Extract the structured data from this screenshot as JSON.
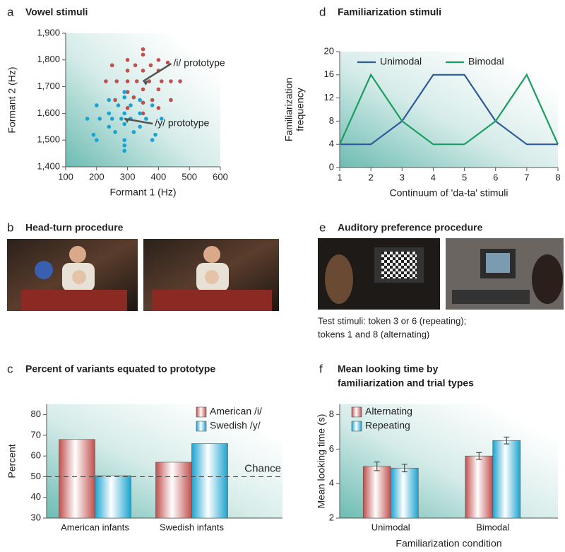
{
  "chart_data": [
    {
      "panel": "a",
      "type": "scatter",
      "title": "Vowel stimuli",
      "xlabel": "Formant 1 (Hz)",
      "ylabel": "Formant 2 (Hz)",
      "xlim": [
        100,
        600
      ],
      "xticks": [
        100,
        200,
        300,
        400,
        500,
        600
      ],
      "ylim": [
        1400,
        1900
      ],
      "yticks": [
        {
          "value": 1400,
          "label": "1,400"
        },
        {
          "value": 1500,
          "label": "1,500"
        },
        {
          "value": 1600,
          "label": "1,600"
        },
        {
          "value": 1700,
          "label": "1,700"
        },
        {
          "value": 1800,
          "label": "1,800"
        },
        {
          "value": 1900,
          "label": "1,900"
        }
      ],
      "series": [
        {
          "color": "#c0504d",
          "x": [
            350,
            350,
            300,
            400,
            250,
            325,
            375,
            430,
            300,
            350,
            400,
            230,
            265,
            300,
            330,
            370,
            410,
            440,
            470,
            300,
            350,
            400,
            260,
            320,
            380,
            440,
            350,
            300,
            400,
            350
          ],
          "y": [
            1840,
            1820,
            1800,
            1800,
            1780,
            1780,
            1780,
            1790,
            1760,
            1760,
            1760,
            1720,
            1720,
            1720,
            1720,
            1720,
            1720,
            1720,
            1720,
            1680,
            1690,
            1690,
            1650,
            1660,
            1650,
            1650,
            1640,
            1620,
            1620,
            1600
          ]
        },
        {
          "color": "#1ba3d0",
          "x": [
            290,
            290,
            240,
            340,
            200,
            270,
            310,
            380,
            240,
            290,
            340,
            170,
            210,
            250,
            280,
            310,
            360,
            410,
            240,
            290,
            340,
            190,
            260,
            320,
            390,
            290,
            200,
            380,
            290,
            290
          ],
          "y": [
            1680,
            1660,
            1650,
            1650,
            1630,
            1630,
            1630,
            1630,
            1600,
            1600,
            1600,
            1580,
            1580,
            1580,
            1580,
            1580,
            1580,
            1580,
            1550,
            1560,
            1550,
            1520,
            1530,
            1530,
            1520,
            1500,
            1500,
            1500,
            1480,
            1460
          ]
        }
      ],
      "annotations": [
        {
          "text": "/i/ prototype",
          "x": 350,
          "y": 1720
        },
        {
          "text": "/y/ prototype",
          "x": 290,
          "y": 1580
        }
      ]
    },
    {
      "panel": "d",
      "type": "line",
      "title": "Familiarization stimuli",
      "xlabel": "Continuum of 'da-ta' stimuli",
      "ylabel": [
        "Familiarization",
        "frequency"
      ],
      "x": [
        1,
        2,
        3,
        4,
        5,
        6,
        7,
        8
      ],
      "xlim": [
        1,
        8
      ],
      "xticks": [
        1,
        2,
        3,
        4,
        5,
        6,
        7,
        8
      ],
      "ylim": [
        0,
        20
      ],
      "yticks": [
        0,
        4,
        8,
        12,
        16,
        20
      ],
      "series": [
        {
          "name": "Unimodal",
          "color": "#2e5a9c",
          "values": [
            4,
            4,
            8,
            16,
            16,
            8,
            4,
            4
          ]
        },
        {
          "name": "Bimodal",
          "color": "#1a9e5e",
          "values": [
            4,
            16,
            8,
            4,
            4,
            8,
            16,
            4
          ]
        }
      ]
    },
    {
      "panel": "c",
      "type": "bar",
      "title": "Percent of variants equated to prototype",
      "ylabel": "Percent",
      "categories": [
        "American infants",
        "Swedish infants"
      ],
      "ylim": [
        30,
        85
      ],
      "yticks": [
        30,
        40,
        50,
        60,
        70,
        80
      ],
      "series": [
        {
          "name": "American /i/",
          "color": "#c0504d",
          "values": [
            68,
            57
          ]
        },
        {
          "name": "Swedish /y/",
          "color": "#1ba3d0",
          "values": [
            50.5,
            66
          ]
        }
      ],
      "reference_line": {
        "value": 50,
        "label": "Chance"
      }
    },
    {
      "panel": "f",
      "type": "bar",
      "title": [
        "Mean looking time by",
        "familiarization and trial types"
      ],
      "xlabel": "Familiarization condition",
      "ylabel": "Mean looking time (s)",
      "categories": [
        "Unimodal",
        "Bimodal"
      ],
      "ylim": [
        2,
        8.6
      ],
      "yticks": [
        2,
        4,
        6,
        8
      ],
      "series": [
        {
          "name": "Alternating",
          "color": "#c0504d",
          "values": [
            5.0,
            5.6
          ],
          "errors": [
            0.25,
            0.2
          ]
        },
        {
          "name": "Repeating",
          "color": "#1ba3d0",
          "values": [
            4.9,
            6.5
          ],
          "errors": [
            0.22,
            0.2
          ]
        }
      ]
    }
  ],
  "photo_panels": [
    {
      "label": "b",
      "title": "Head-turn procedure"
    },
    {
      "label": "e",
      "title": "Auditory preference procedure",
      "caption": [
        "Test stimuli: token 3 or 6 (repeating);",
        "tokens 1 and 8 (alternating)"
      ]
    }
  ]
}
